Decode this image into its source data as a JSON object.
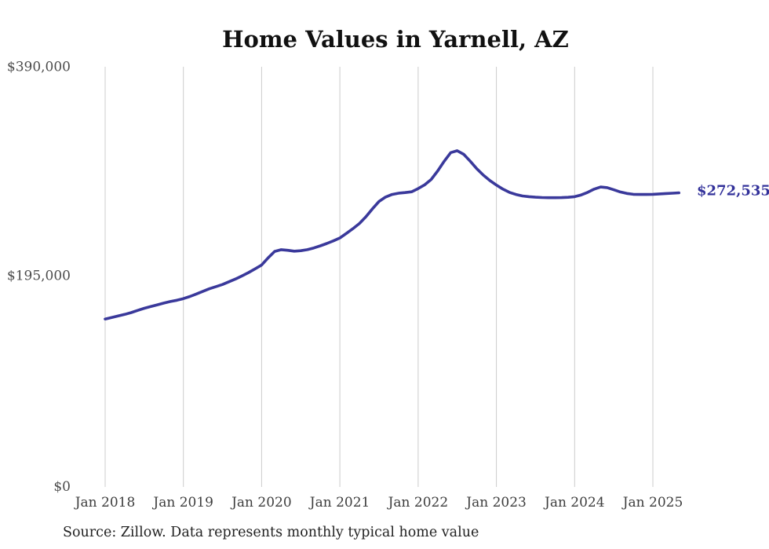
{
  "page": {
    "source_note": "Source: Zillow. Data represents monthly typical home value"
  },
  "chart_data": {
    "type": "line",
    "title": "Home Values in Yarnell, AZ",
    "xlabel": "",
    "ylabel": "",
    "x_start": "2018-01",
    "x_end": "2025-05",
    "x_frequency": "monthly",
    "values": [
      155000,
      156400,
      157800,
      159300,
      161000,
      163000,
      165000,
      166600,
      168200,
      169800,
      171300,
      172500,
      174000,
      176000,
      178300,
      180800,
      183200,
      185200,
      187200,
      189700,
      192300,
      195200,
      198300,
      201700,
      205300,
      212000,
      218000,
      219600,
      219000,
      218200,
      218600,
      219600,
      221200,
      223200,
      225400,
      227800,
      230500,
      234800,
      239200,
      244000,
      250300,
      257700,
      264500,
      268600,
      271000,
      272200,
      272800,
      273500,
      276500,
      280000,
      285000,
      293000,
      302000,
      310000,
      311800,
      308400,
      302000,
      295000,
      289000,
      284000,
      279800,
      276000,
      273000,
      271000,
      269600,
      269000,
      268500,
      268200,
      268000,
      268000,
      268100,
      268400,
      269000,
      270600,
      273000,
      276000,
      278000,
      277400,
      275400,
      273400,
      272000,
      271200,
      271000,
      271000,
      271200,
      271500,
      271900,
      272200,
      272535
    ],
    "x_tick_labels": [
      "Jan 2018",
      "Jan 2019",
      "Jan 2020",
      "Jan 2021",
      "Jan 2022",
      "Jan 2023",
      "Jan 2024",
      "Jan 2025"
    ],
    "y_tick_labels": [
      "$390,000",
      "$195,000",
      "$0"
    ],
    "y_tick_values": [
      390000,
      195000,
      0
    ],
    "ylim": [
      0,
      390000
    ],
    "grid": "vertical-only",
    "legend_position": "none",
    "end_label": "$272,535",
    "latest_value": 272535,
    "colors": {
      "line": "#3a399b",
      "end_label": "#32319a",
      "gridline": "#cccccc"
    }
  }
}
